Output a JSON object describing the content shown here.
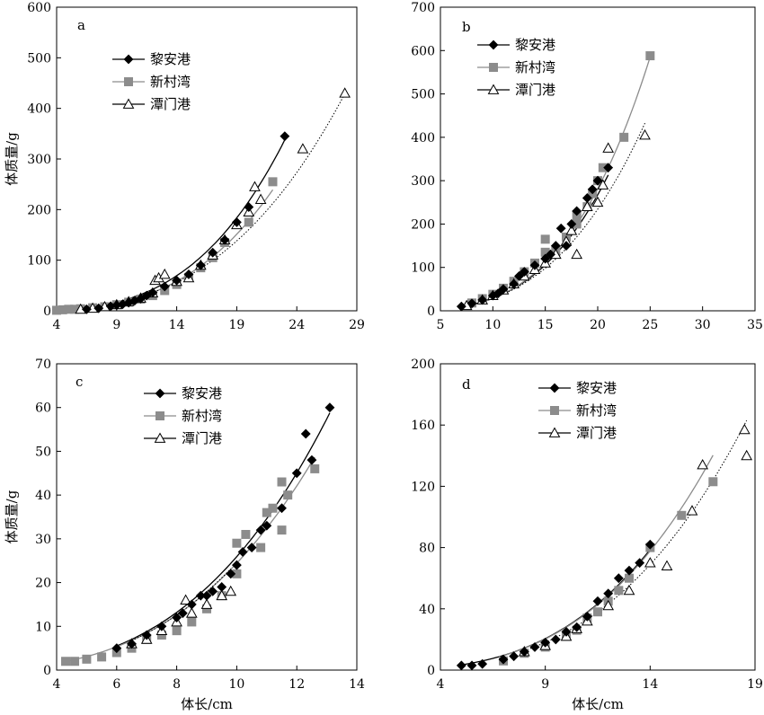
{
  "axis_titles": {
    "ylabel": "体质量/g",
    "xlabel": "体长/cm"
  },
  "legend_labels": [
    "黎安港",
    "新村湾",
    "潭门港"
  ],
  "series_styles": [
    {
      "name": "黎安港",
      "marker": "diamond",
      "color": "#000000",
      "line": "solid"
    },
    {
      "name": "新村湾",
      "marker": "square",
      "color": "#8c8c8c",
      "line": "solid"
    },
    {
      "name": "潭门港",
      "marker": "open-triangle",
      "color": "#000000",
      "line": "dotted"
    }
  ],
  "chart_data": [
    {
      "type": "scatter",
      "panel_label": "a",
      "xlabel": "",
      "ylabel": "体质量/g",
      "xlim": [
        4,
        29
      ],
      "ylim": [
        0,
        600
      ],
      "xticks": [
        4,
        9,
        14,
        19,
        24,
        29
      ],
      "yticks": [
        0,
        100,
        200,
        300,
        400,
        500,
        600
      ],
      "legend_position": "upper-left",
      "series": [
        {
          "name": "黎安港",
          "points": [
            [
              6.5,
              3
            ],
            [
              7.5,
              5
            ],
            [
              8.5,
              9
            ],
            [
              9,
              11
            ],
            [
              9.5,
              13
            ],
            [
              10,
              16
            ],
            [
              10.5,
              20
            ],
            [
              11,
              24
            ],
            [
              11.5,
              30
            ],
            [
              12,
              36
            ],
            [
              13,
              48
            ],
            [
              14,
              60
            ],
            [
              15,
              72
            ],
            [
              16,
              90
            ],
            [
              17,
              115
            ],
            [
              18,
              140
            ],
            [
              19,
              175
            ],
            [
              20,
              205
            ],
            [
              23,
              345
            ]
          ],
          "curve": {
            "a": 0.0153,
            "b": 3.19
          }
        },
        {
          "name": "新村湾",
          "points": [
            [
              4,
              1
            ],
            [
              4.5,
              2
            ],
            [
              5,
              3
            ],
            [
              5.5,
              3
            ],
            [
              6,
              4
            ],
            [
              7,
              6
            ],
            [
              8,
              8
            ],
            [
              9,
              12
            ],
            [
              10,
              17
            ],
            [
              11,
              23
            ],
            [
              12,
              30
            ],
            [
              13,
              40
            ],
            [
              14,
              52
            ],
            [
              15,
              66
            ],
            [
              16,
              85
            ],
            [
              17,
              105
            ],
            [
              18,
              135
            ],
            [
              20,
              175
            ],
            [
              22,
              255
            ]
          ],
          "curve": {
            "a": 0.0155,
            "b": 3.12
          }
        },
        {
          "name": "潭门港",
          "points": [
            [
              6,
              3
            ],
            [
              7,
              5
            ],
            [
              8,
              8
            ],
            [
              9,
              12
            ],
            [
              10,
              18
            ],
            [
              11,
              25
            ],
            [
              12,
              35
            ],
            [
              12.2,
              60
            ],
            [
              12.5,
              65
            ],
            [
              13,
              72
            ],
            [
              14,
              58
            ],
            [
              15,
              65
            ],
            [
              16,
              90
            ],
            [
              17,
              110
            ],
            [
              18,
              140
            ],
            [
              19,
              170
            ],
            [
              20,
              195
            ],
            [
              21,
              220
            ],
            [
              20.5,
              245
            ],
            [
              24.5,
              320
            ],
            [
              28,
              430
            ]
          ],
          "curve": {
            "a": 0.0255,
            "b": 2.92
          }
        }
      ]
    },
    {
      "type": "scatter",
      "panel_label": "b",
      "xlabel": "",
      "ylabel": "",
      "xlim": [
        5,
        35
      ],
      "ylim": [
        0,
        700
      ],
      "xticks": [
        5,
        10,
        15,
        20,
        25,
        30,
        35
      ],
      "yticks": [
        0,
        100,
        200,
        300,
        400,
        500,
        600,
        700
      ],
      "legend_position": "upper-left",
      "series": [
        {
          "name": "黎安港",
          "points": [
            [
              7,
              10
            ],
            [
              8,
              17
            ],
            [
              9,
              25
            ],
            [
              10,
              35
            ],
            [
              10.5,
              40
            ],
            [
              11,
              50
            ],
            [
              12,
              62
            ],
            [
              12.5,
              80
            ],
            [
              13,
              90
            ],
            [
              14,
              105
            ],
            [
              15,
              120
            ],
            [
              15.5,
              130
            ],
            [
              16,
              150
            ],
            [
              16.5,
              190
            ],
            [
              17,
              150
            ],
            [
              17.5,
              200
            ],
            [
              18,
              230
            ],
            [
              19,
              260
            ],
            [
              19.5,
              280
            ],
            [
              20,
              300
            ],
            [
              21,
              330
            ]
          ],
          "curve": {
            "a": 0.0173,
            "b": 3.22
          }
        },
        {
          "name": "新村湾",
          "points": [
            [
              8,
              18
            ],
            [
              9,
              28
            ],
            [
              10,
              38
            ],
            [
              11,
              52
            ],
            [
              12,
              68
            ],
            [
              13,
              90
            ],
            [
              14,
              110
            ],
            [
              15,
              135
            ],
            [
              15,
              165
            ],
            [
              16,
              140
            ],
            [
              17,
              170
            ],
            [
              18,
              200
            ],
            [
              18,
              220
            ],
            [
              19,
              240
            ],
            [
              19.5,
              270
            ],
            [
              20,
              300
            ],
            [
              20.5,
              330
            ],
            [
              22.5,
              400
            ],
            [
              25,
              588
            ]
          ],
          "curve": {
            "a": 0.0152,
            "b": 3.28
          }
        },
        {
          "name": "潭门港",
          "points": [
            [
              7.5,
              12
            ],
            [
              9,
              25
            ],
            [
              10,
              35
            ],
            [
              11,
              48
            ],
            [
              12,
              62
            ],
            [
              13,
              80
            ],
            [
              14,
              95
            ],
            [
              15,
              110
            ],
            [
              16,
              130
            ],
            [
              17,
              160
            ],
            [
              17.5,
              185
            ],
            [
              18,
              130
            ],
            [
              19,
              240
            ],
            [
              20,
              250
            ],
            [
              20.5,
              290
            ],
            [
              21,
              375
            ],
            [
              24.5,
              405
            ]
          ],
          "curve": {
            "a": 0.0276,
            "b": 3.02
          }
        }
      ]
    },
    {
      "type": "scatter",
      "panel_label": "c",
      "xlabel": "体长/cm",
      "ylabel": "体质量/g",
      "xlim": [
        4,
        14
      ],
      "ylim": [
        0,
        70
      ],
      "xticks": [
        4,
        6,
        8,
        10,
        12,
        14
      ],
      "yticks": [
        0,
        10,
        20,
        30,
        40,
        50,
        60,
        70
      ],
      "legend_position": "upper-left",
      "series": [
        {
          "name": "黎安港",
          "points": [
            [
              6,
              5
            ],
            [
              6.5,
              6
            ],
            [
              7,
              8
            ],
            [
              7.5,
              10
            ],
            [
              8,
              12
            ],
            [
              8.2,
              13
            ],
            [
              8.5,
              15
            ],
            [
              8.8,
              17
            ],
            [
              9,
              17
            ],
            [
              9.2,
              18
            ],
            [
              9.5,
              19
            ],
            [
              9.8,
              22
            ],
            [
              10,
              24
            ],
            [
              10.2,
              27
            ],
            [
              10.5,
              28
            ],
            [
              10.8,
              32
            ],
            [
              11,
              33
            ],
            [
              11.5,
              37
            ],
            [
              12,
              45
            ],
            [
              12.3,
              54
            ],
            [
              12.5,
              48
            ],
            [
              13.1,
              60
            ]
          ],
          "curve": {
            "a": 0.0242,
            "b": 3.03
          }
        },
        {
          "name": "新村湾",
          "points": [
            [
              4.3,
              2
            ],
            [
              4.6,
              2
            ],
            [
              5,
              2.5
            ],
            [
              5.5,
              3
            ],
            [
              6,
              4
            ],
            [
              6.5,
              5
            ],
            [
              7,
              7
            ],
            [
              7.5,
              8
            ],
            [
              8,
              9
            ],
            [
              8.5,
              11
            ],
            [
              9,
              14
            ],
            [
              9.5,
              17
            ],
            [
              10,
              22
            ],
            [
              10,
              29
            ],
            [
              10.3,
              31
            ],
            [
              10.8,
              28
            ],
            [
              11,
              36
            ],
            [
              11.2,
              37
            ],
            [
              11.5,
              32
            ],
            [
              11.5,
              43
            ],
            [
              11.7,
              40
            ],
            [
              12.6,
              46
            ]
          ],
          "curve": {
            "a": 0.0256,
            "b": 2.98
          }
        },
        {
          "name": "潭门港",
          "points": [
            [
              6.5,
              6
            ],
            [
              7,
              7
            ],
            [
              7.5,
              9
            ],
            [
              8,
              11
            ],
            [
              8.3,
              16
            ],
            [
              8.5,
              13
            ],
            [
              9,
              15
            ],
            [
              9.5,
              17
            ],
            [
              9.8,
              18
            ]
          ],
          "curve": {
            "a": 0.0246,
            "b": 3.0
          }
        }
      ]
    },
    {
      "type": "scatter",
      "panel_label": "d",
      "xlabel": "体长/cm",
      "ylabel": "",
      "xlim": [
        4,
        19
      ],
      "ylim": [
        0,
        200
      ],
      "xticks": [
        4,
        9,
        14,
        19
      ],
      "yticks": [
        0,
        40,
        80,
        120,
        160,
        200
      ],
      "legend_position": "upper-left",
      "series": [
        {
          "name": "黎安港",
          "points": [
            [
              5,
              3
            ],
            [
              5.5,
              3
            ],
            [
              6,
              4
            ],
            [
              7,
              7
            ],
            [
              7.5,
              9
            ],
            [
              8,
              12
            ],
            [
              8.5,
              15
            ],
            [
              9,
              18
            ],
            [
              9.5,
              20
            ],
            [
              10,
              25
            ],
            [
              10.5,
              28
            ],
            [
              11,
              35
            ],
            [
              11.5,
              45
            ],
            [
              12,
              50
            ],
            [
              12.5,
              60
            ],
            [
              13,
              65
            ],
            [
              13.5,
              70
            ],
            [
              14,
              82
            ]
          ],
          "curve": {
            "a": 0.0258,
            "b": 3.04
          }
        },
        {
          "name": "新村湾",
          "points": [
            [
              7,
              6
            ],
            [
              8,
              11
            ],
            [
              9,
              15
            ],
            [
              10,
              22
            ],
            [
              10.5,
              26
            ],
            [
              11,
              34
            ],
            [
              11.5,
              38
            ],
            [
              12,
              45
            ],
            [
              12.5,
              52
            ],
            [
              13,
              60
            ],
            [
              14,
              80
            ],
            [
              15.5,
              101
            ],
            [
              17,
              123
            ]
          ],
          "curve": {
            "a": 0.0255,
            "b": 3.04
          }
        },
        {
          "name": "潭门港",
          "points": [
            [
              8,
              12
            ],
            [
              9,
              16
            ],
            [
              10,
              22
            ],
            [
              10.5,
              27
            ],
            [
              11,
              32
            ],
            [
              12,
              42
            ],
            [
              13,
              52
            ],
            [
              14,
              70
            ],
            [
              14.8,
              68
            ],
            [
              16,
              104
            ],
            [
              16.5,
              134
            ],
            [
              18.5,
              157
            ],
            [
              18.6,
              140
            ]
          ],
          "curve": {
            "a": 0.0232,
            "b": 3.03
          }
        }
      ]
    }
  ]
}
